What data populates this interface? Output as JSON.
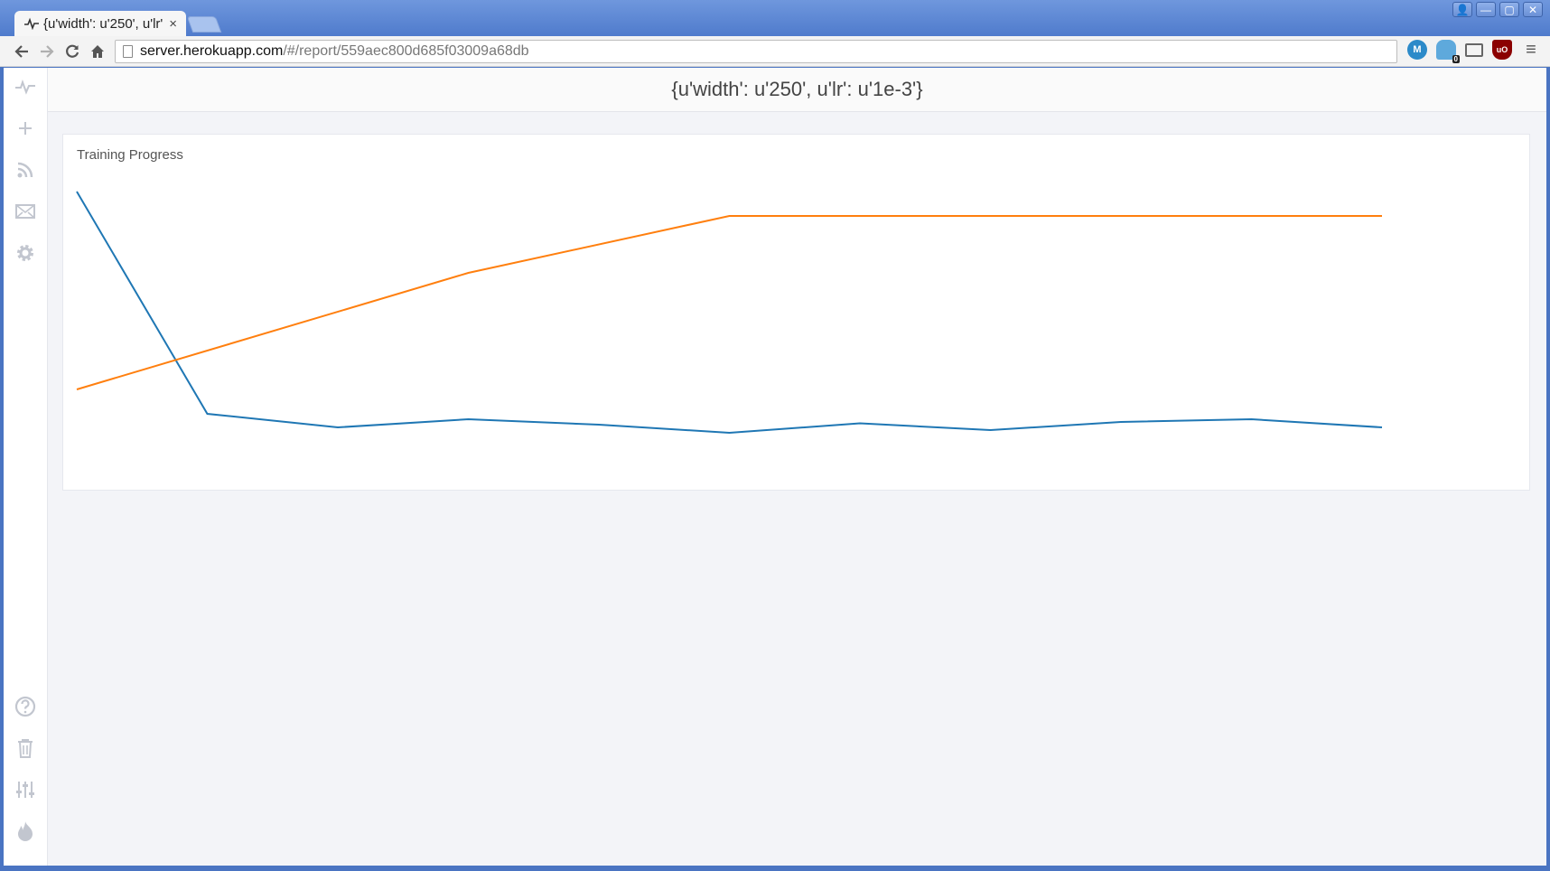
{
  "browser": {
    "tab_title": "{u'width': u'250', u'lr': u'1e-3'}",
    "tab_close": "×",
    "url_host": "server.herokuapp.com",
    "url_path": "/#/report/559aec800d685f03009a68db",
    "window_buttons": [
      "👤",
      "—",
      "▢",
      "✕"
    ],
    "ext_m_label": "M",
    "ext_ghost_badge": "0",
    "ext_ub_label": "uO",
    "menu_glyph": "≡"
  },
  "header": {
    "title": "{u'width': u'250', u'lr': u'1e-3'}"
  },
  "sidebar": {
    "top_icons": [
      "activity-icon",
      "plus-icon",
      "rss-icon",
      "mail-icon",
      "gear-icon"
    ],
    "bottom_icons": [
      "help-icon",
      "trash-icon",
      "sliders-icon",
      "fire-icon"
    ]
  },
  "card": {
    "title": "Training Progress"
  },
  "chart_data": {
    "type": "line",
    "title": "Training Progress",
    "x": [
      0,
      1,
      2,
      3,
      4,
      5,
      6,
      7,
      8,
      9,
      10
    ],
    "ylim": [
      0,
      1
    ],
    "grid": false,
    "series": [
      {
        "color": "#1f77b4",
        "values": [
          0.98,
          0.16,
          0.11,
          0.14,
          0.12,
          0.09,
          0.125,
          0.1,
          0.13,
          0.14,
          0.11
        ]
      },
      {
        "color": "#ff7f0e",
        "values": [
          0.25,
          null,
          null,
          0.68,
          null,
          0.89,
          null,
          null,
          null,
          null,
          0.89
        ]
      }
    ]
  }
}
